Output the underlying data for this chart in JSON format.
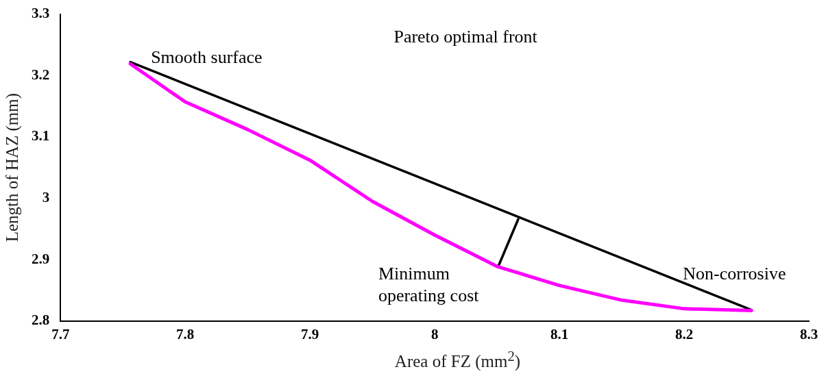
{
  "chart_data": {
    "type": "line",
    "title": "Pareto optimal front",
    "xlabel": "Area of FZ (mm$^{2}$)",
    "ylabel": "Length of HAZ (mm)",
    "xlim": [
      7.7,
      8.3
    ],
    "xticks": [
      7.7,
      7.8,
      7.9,
      8,
      8.1,
      8.2,
      8.3
    ],
    "ylim": [
      2.8,
      3.3
    ],
    "yticks": [
      2.8,
      2.9,
      3,
      3.1,
      3.2,
      3.3
    ],
    "grid": false,
    "legend": false,
    "marker": "none",
    "line_style": "solid",
    "series": [
      {
        "color": "#ff00ff",
        "x": [
          7.756,
          7.8,
          7.85,
          7.9,
          7.95,
          8.0,
          8.05,
          8.1,
          8.15,
          8.2,
          8.254
        ],
        "values": [
          3.219,
          3.157,
          3.112,
          3.062,
          2.995,
          2.94,
          2.889,
          2.858,
          2.834,
          2.82,
          2.817
        ]
      },
      {
        "color": "#000000",
        "x": [
          7.756,
          8.254
        ],
        "values": [
          3.222,
          2.818
        ]
      },
      {
        "color": "#000000",
        "x": [
          8.051,
          8.067
        ],
        "values": [
          2.889,
          2.966
        ]
      }
    ],
    "annotations": [
      {
        "text": "Smooth surface",
        "x": 7.756,
        "y": 3.219
      },
      {
        "text": "Minimum\noperating cost",
        "x": 8.051,
        "y": 2.889
      },
      {
        "text": "Non-corrosive",
        "x": 8.254,
        "y": 2.817
      }
    ]
  }
}
